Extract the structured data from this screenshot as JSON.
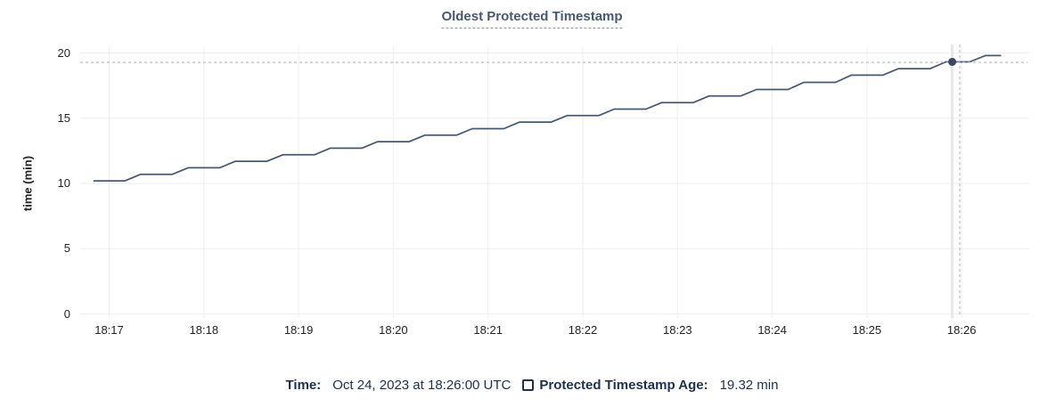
{
  "chart_data": {
    "type": "line",
    "title": "Oldest Protected Timestamp",
    "xlabel": "",
    "ylabel": "time (min)",
    "ylim": [
      0,
      20
    ],
    "yticks": [
      0,
      5,
      10,
      15,
      20
    ],
    "x_tick_labels": [
      "18:17",
      "18:18",
      "18:19",
      "18:20",
      "18:21",
      "18:22",
      "18:23",
      "18:24",
      "18:25",
      "18:26"
    ],
    "x_tick_interval": "1 minute",
    "grid": true,
    "legend_position": "bottom",
    "series": [
      {
        "name": "Protected Timestamp Age",
        "unit": "min",
        "color": "#475872",
        "points_format": "[seconds_after_18:17, minutes]",
        "points": [
          [
            -10,
            10.2
          ],
          [
            10,
            10.2
          ],
          [
            20,
            10.7
          ],
          [
            40,
            10.7
          ],
          [
            50,
            11.2
          ],
          [
            70,
            11.2
          ],
          [
            80,
            11.7
          ],
          [
            100,
            11.7
          ],
          [
            110,
            12.2
          ],
          [
            130,
            12.2
          ],
          [
            140,
            12.7
          ],
          [
            160,
            12.7
          ],
          [
            170,
            13.2
          ],
          [
            190,
            13.2
          ],
          [
            200,
            13.7
          ],
          [
            220,
            13.7
          ],
          [
            230,
            14.2
          ],
          [
            250,
            14.2
          ],
          [
            260,
            14.7
          ],
          [
            280,
            14.7
          ],
          [
            290,
            15.2
          ],
          [
            310,
            15.2
          ],
          [
            320,
            15.7
          ],
          [
            340,
            15.7
          ],
          [
            350,
            16.2
          ],
          [
            370,
            16.2
          ],
          [
            380,
            16.7
          ],
          [
            400,
            16.7
          ],
          [
            410,
            17.2
          ],
          [
            430,
            17.2
          ],
          [
            440,
            17.75
          ],
          [
            460,
            17.75
          ],
          [
            470,
            18.3
          ],
          [
            490,
            18.3
          ],
          [
            500,
            18.8
          ],
          [
            520,
            18.8
          ],
          [
            530,
            19.32
          ],
          [
            545,
            19.32
          ],
          [
            555,
            19.8
          ],
          [
            565,
            19.8
          ]
        ]
      }
    ],
    "hover": {
      "time_label": "Oct 24, 2023 at 18:26:00 UTC",
      "point_t": 534,
      "value": 19.32,
      "value_label": "19.32 min",
      "crosshair": "dashed horizontal and vertical lines with dot marker"
    }
  },
  "legend": {
    "time_label": "Time:",
    "time_value": "Oct 24, 2023 at 18:26:00 UTC",
    "series_label": "Protected Timestamp Age:",
    "series_value": "19.32 min"
  },
  "colors": {
    "line": "#475872",
    "dot": "#394760",
    "grid": "#eeeff1",
    "hover_column": "#e7e7ea",
    "crosshair_dashed": "#a2b2c3",
    "title_text": "#475872",
    "legend_text": "#1c3152",
    "tick_text": "#242424"
  }
}
